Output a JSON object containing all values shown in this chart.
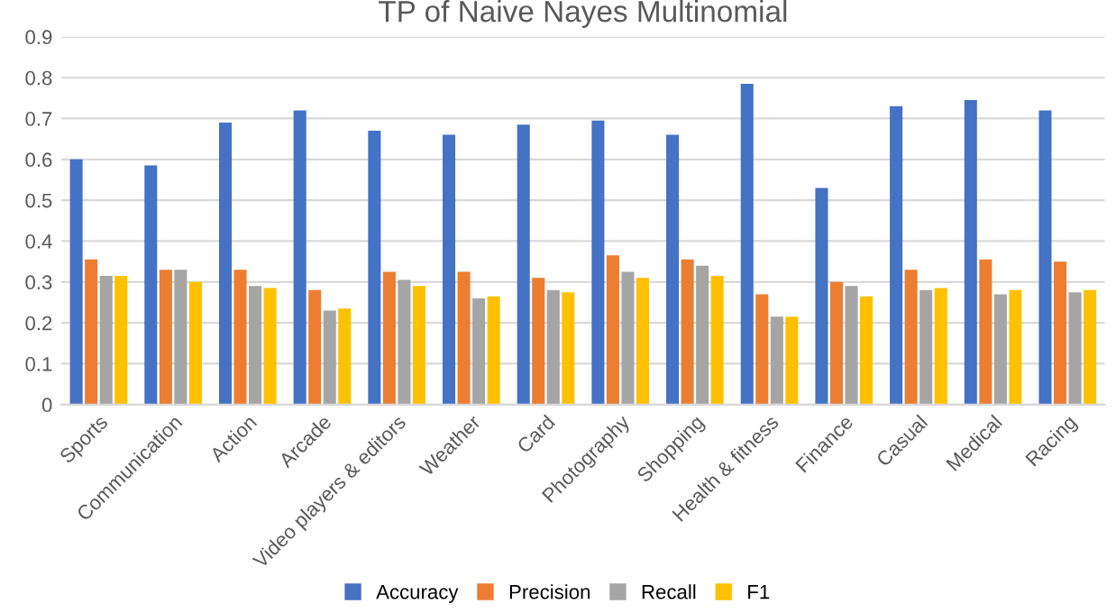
{
  "chart_data": {
    "type": "bar",
    "title": "TP of Naive Nayes Multinomial",
    "categories": [
      "Sports",
      "Communication",
      "Action",
      "Arcade",
      "Video players & editors",
      "Weather",
      "Card",
      "Photography",
      "Shopping",
      "Health & fitness",
      "Finance",
      "Casual",
      "Medical",
      "Racing"
    ],
    "series": [
      {
        "name": "Accuracy",
        "color": "#4472c4",
        "values": [
          0.6,
          0.585,
          0.69,
          0.72,
          0.67,
          0.66,
          0.685,
          0.695,
          0.66,
          0.785,
          0.53,
          0.73,
          0.745,
          0.72
        ]
      },
      {
        "name": "Precision",
        "color": "#ed7d31",
        "values": [
          0.355,
          0.33,
          0.33,
          0.28,
          0.325,
          0.325,
          0.31,
          0.365,
          0.355,
          0.27,
          0.3,
          0.33,
          0.355,
          0.35
        ]
      },
      {
        "name": "Recall",
        "color": "#a5a5a5",
        "values": [
          0.315,
          0.33,
          0.29,
          0.23,
          0.305,
          0.26,
          0.28,
          0.325,
          0.34,
          0.215,
          0.29,
          0.28,
          0.27,
          0.275
        ]
      },
      {
        "name": "F1",
        "color": "#ffc000",
        "values": [
          0.315,
          0.3,
          0.285,
          0.235,
          0.29,
          0.265,
          0.275,
          0.31,
          0.315,
          0.215,
          0.265,
          0.285,
          0.28,
          0.28
        ]
      }
    ],
    "ylim": [
      0,
      0.9
    ],
    "yticks": [
      0,
      0.1,
      0.2,
      0.3,
      0.4,
      0.5,
      0.6,
      0.7,
      0.8,
      0.9
    ],
    "grid": "y",
    "legend": "bottom"
  }
}
